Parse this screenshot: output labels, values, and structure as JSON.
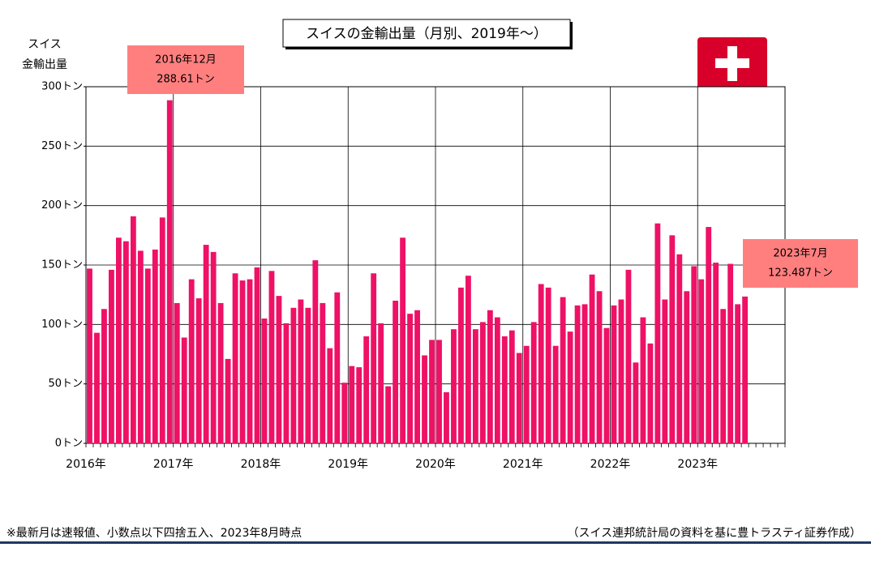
{
  "chart_data": {
    "type": "bar",
    "title": "スイスの金輸出量（月別、2019年～）",
    "y_label": [
      "スイス",
      "金輸出量"
    ],
    "color": "#ee1166",
    "grid": true,
    "ylim": [
      0,
      300
    ],
    "yticks": [
      {
        "value": 0,
        "label": "0トン"
      },
      {
        "value": 50,
        "label": "50トン"
      },
      {
        "value": 100,
        "label": "100トン"
      },
      {
        "value": 150,
        "label": "150トン"
      },
      {
        "value": 200,
        "label": "200トン"
      },
      {
        "value": 250,
        "label": "250トン"
      },
      {
        "value": 300,
        "label": "300トン"
      }
    ],
    "categories": [
      "2016年",
      null,
      null,
      null,
      null,
      null,
      null,
      null,
      null,
      null,
      null,
      null,
      "2017年",
      null,
      null,
      null,
      null,
      null,
      null,
      null,
      null,
      null,
      null,
      null,
      "2018年",
      null,
      null,
      null,
      null,
      null,
      null,
      null,
      null,
      null,
      null,
      null,
      "2019年",
      null,
      null,
      null,
      null,
      null,
      null,
      null,
      null,
      null,
      null,
      null,
      "2020年",
      null,
      null,
      null,
      null,
      null,
      null,
      null,
      null,
      null,
      null,
      null,
      "2021年",
      null,
      null,
      null,
      null,
      null,
      null,
      null,
      null,
      null,
      null,
      null,
      "2022年",
      null,
      null,
      null,
      null,
      null,
      null,
      null,
      null,
      null,
      null,
      null,
      "2023年",
      null,
      null,
      null,
      null,
      null,
      null
    ],
    "values": [
      147,
      93,
      113,
      146,
      173,
      170,
      191,
      162,
      147,
      163,
      190,
      288.61,
      118,
      89,
      138,
      122,
      167,
      161,
      118,
      71,
      143,
      137,
      138,
      148,
      105,
      145,
      124,
      101,
      114,
      121,
      114,
      154,
      118,
      80,
      127,
      51,
      65,
      64,
      90,
      143,
      101,
      48,
      120,
      173,
      109,
      112,
      74,
      87,
      87,
      43,
      96,
      131,
      141,
      96,
      102,
      112,
      106,
      90,
      95,
      76,
      82,
      102,
      134,
      131,
      82,
      123,
      94,
      116,
      117,
      142,
      128,
      97,
      116,
      121,
      146,
      68,
      106,
      84,
      185,
      121,
      175,
      159,
      128,
      149,
      138,
      182,
      152,
      113,
      151,
      117,
      123.487
    ],
    "annotations": [
      {
        "lines": [
          "2016年12月",
          "288.61トン"
        ]
      },
      {
        "lines": [
          "2023年7月",
          "123.487トン"
        ]
      }
    ],
    "footnote_left": "※最新月は速報値、小数点以下四捨五入、2023年8月時点",
    "footnote_right": "（スイス連邦統計局の資料を基に豊トラスティ証券作成）"
  }
}
